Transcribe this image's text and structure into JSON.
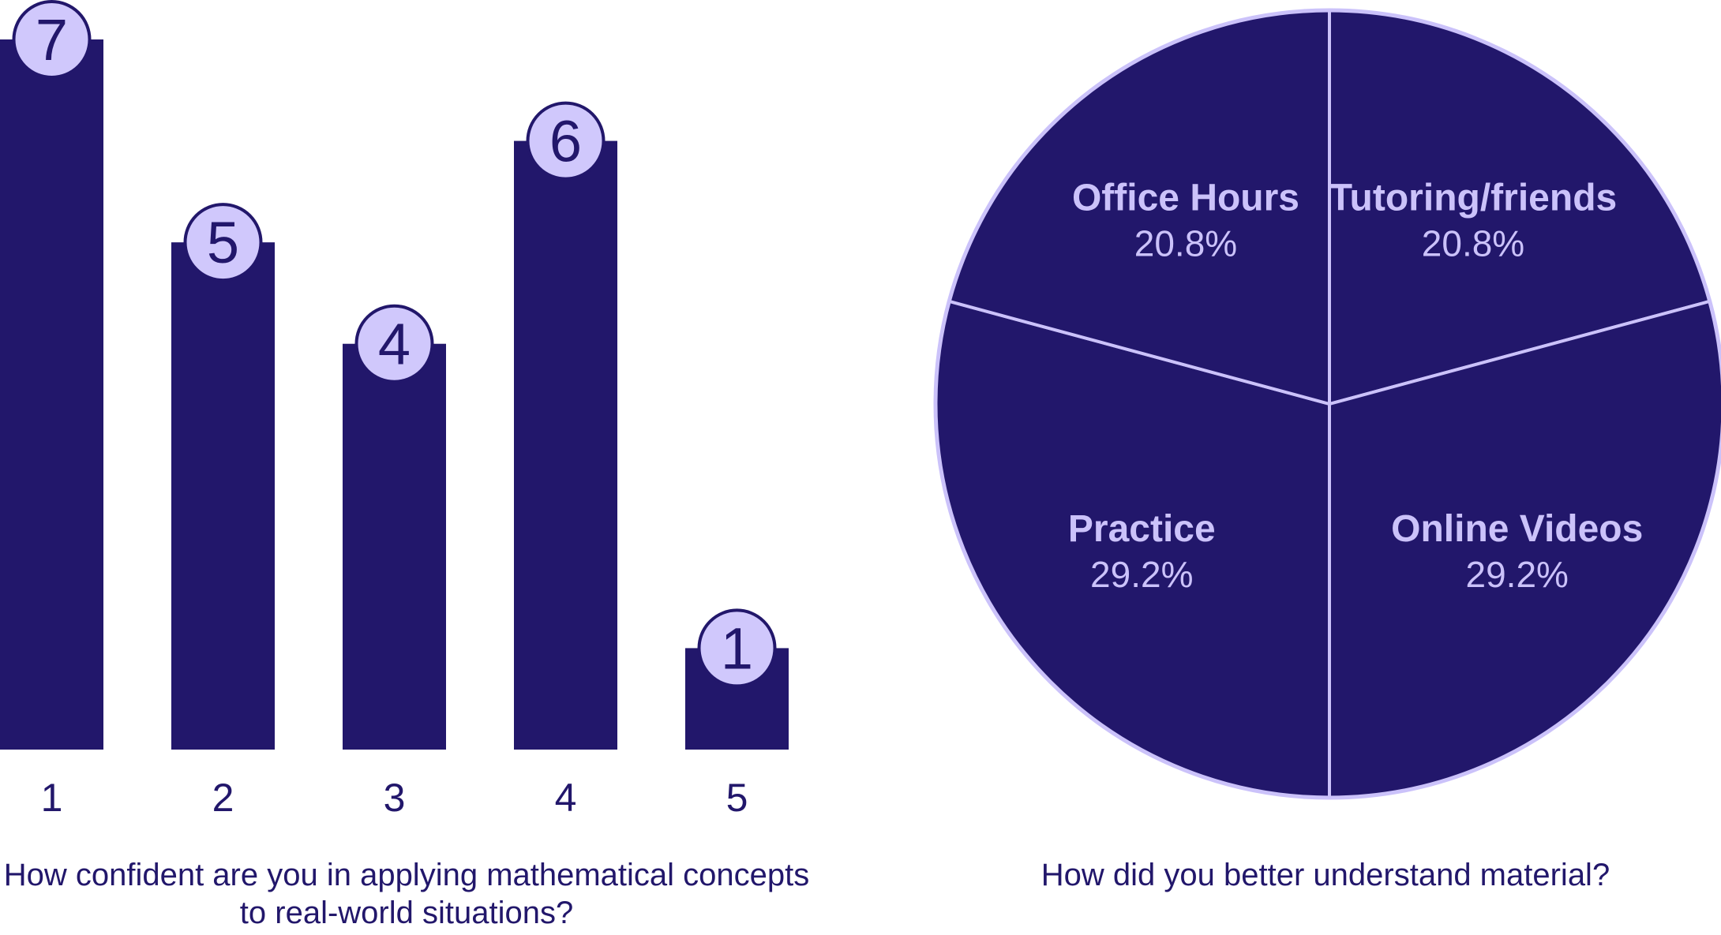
{
  "colors": {
    "bar_fill": "#22176b",
    "badge_fill": "#d0c8fc",
    "badge_stroke": "#22176b",
    "pie_fill": "#22176b",
    "pie_border": "#cbc2fa",
    "text_dark": "#22176b",
    "text_light": "#cbc2fa"
  },
  "chart_data": [
    {
      "type": "bar",
      "categories": [
        "1",
        "2",
        "3",
        "4",
        "5"
      ],
      "values": [
        7,
        5,
        4,
        6,
        1
      ],
      "xlabel": "How confident are you in applying mathematical concepts to real-world situations?",
      "xlabel_lines": [
        "How confident are you in applying mathematical concepts",
        "to real-world situations?"
      ],
      "ylabel": "",
      "ylim": [
        0,
        7
      ],
      "grid": false,
      "data_labels": [
        "7",
        "5",
        "4",
        "6",
        "1"
      ]
    },
    {
      "type": "pie",
      "title": "How did you better understand material?",
      "slices": [
        {
          "label": "Tutoring/friends",
          "percent_label": "20.8%",
          "value": 20.8
        },
        {
          "label": "Online Videos",
          "percent_label": "29.2%",
          "value": 29.2
        },
        {
          "label": "Practice",
          "percent_label": "29.2%",
          "value": 29.2
        },
        {
          "label": "Office Hours",
          "percent_label": "20.8%",
          "value": 20.8
        }
      ]
    }
  ]
}
